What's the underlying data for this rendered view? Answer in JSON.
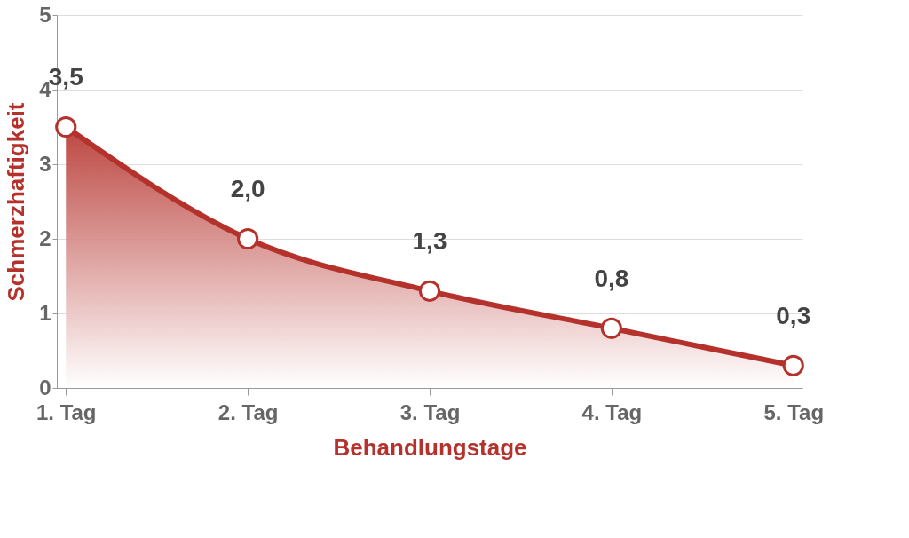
{
  "chart_data": {
    "type": "area",
    "xlabel": "Behandlungstage",
    "ylabel": "Schmerzhaftigkeit",
    "categories": [
      "1. Tag",
      "2. Tag",
      "3. Tag",
      "4. Tag",
      "5. Tag"
    ],
    "series": [
      {
        "color": "#b5322c",
        "values": [
          3.5,
          2.0,
          1.3,
          0.8,
          0.3
        ],
        "value_labels": [
          "3,5",
          "2,0",
          "1,3",
          "0,8",
          "0,3"
        ]
      }
    ],
    "ylim": [
      0,
      5
    ],
    "yticks": [
      0,
      1,
      2,
      3,
      4,
      5
    ],
    "grid": "y",
    "marker": "circle",
    "line_style": "solid"
  }
}
